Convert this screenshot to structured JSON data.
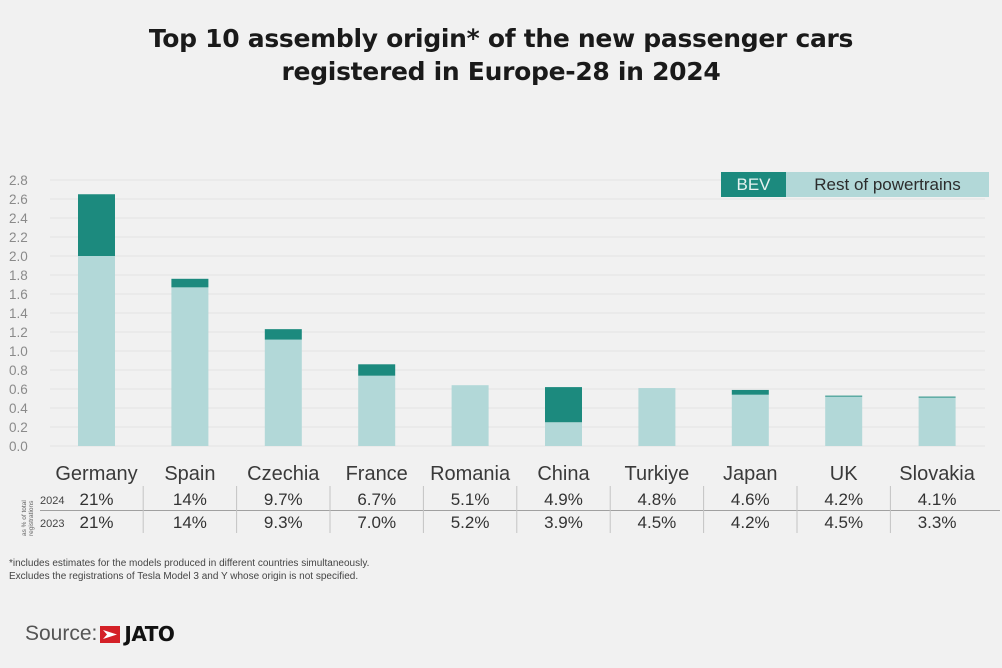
{
  "title_line1": "Top 10 assembly origin* of the new passenger cars",
  "title_line2": "registered in Europe-28 in 2024",
  "legend": {
    "bev": "BEV",
    "rest": "Rest of powertrains"
  },
  "colors": {
    "bev": "#1c8a7e",
    "rest": "#b2d8d8",
    "grid": "#e2e2e2",
    "background": "#f1f1f1"
  },
  "table": {
    "side_label_line1": "as % of total",
    "side_label_line2": "registrations",
    "rows": [
      {
        "year": "2024",
        "values": [
          "21%",
          "14%",
          "9.7%",
          "6.7%",
          "5.1%",
          "4.9%",
          "4.8%",
          "4.6%",
          "4.2%",
          "4.1%"
        ]
      },
      {
        "year": "2023",
        "values": [
          "21%",
          "14%",
          "9.3%",
          "7.0%",
          "5.2%",
          "3.9%",
          "4.5%",
          "4.2%",
          "4.5%",
          "3.3%"
        ]
      }
    ]
  },
  "footnote_line1": "*includes estimates for the models produced in different countries simultaneously.",
  "footnote_line2": "Excludes the registrations of Tesla Model 3 and Y whose origin is not specified.",
  "source": {
    "label": "Source:",
    "brand": "JATO"
  },
  "chart_data": {
    "type": "bar",
    "stacked": true,
    "title": "Top 10 assembly origin* of the new passenger cars registered in Europe-28 in 2024",
    "xlabel": "",
    "ylabel": "",
    "categories": [
      "Germany",
      "Spain",
      "Czechia",
      "France",
      "Romania",
      "China",
      "Turkiye",
      "Japan",
      "UK",
      "Slovakia"
    ],
    "series": [
      {
        "name": "Rest of powertrains",
        "values": [
          2.0,
          1.67,
          1.12,
          0.74,
          0.64,
          0.25,
          0.61,
          0.54,
          0.52,
          0.51
        ]
      },
      {
        "name": "BEV",
        "values": [
          0.65,
          0.09,
          0.11,
          0.12,
          0.0,
          0.37,
          0.0,
          0.05,
          0.01,
          0.01
        ]
      }
    ],
    "ylim": [
      0,
      2.8
    ],
    "yticks": [
      "0.0",
      "0.2",
      "0.4",
      "0.6",
      "0.8",
      "1.0",
      "1.2",
      "1.4",
      "1.6",
      "1.8",
      "2.0",
      "2.2",
      "2.4",
      "2.6",
      "2.8"
    ],
    "grid": true,
    "legend_position": "top-right"
  }
}
